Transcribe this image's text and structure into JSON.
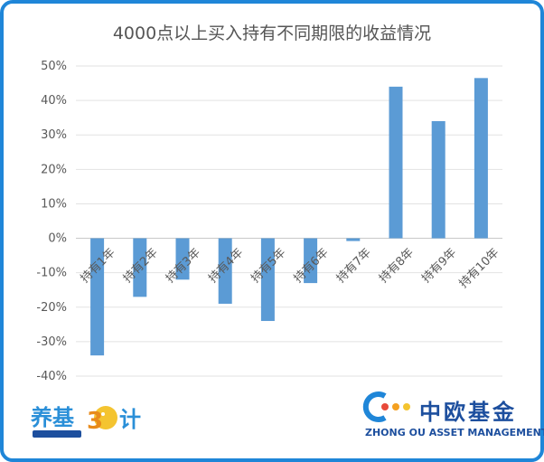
{
  "chart_data": {
    "type": "bar",
    "title": "4000点以上买入持有不同期限的收益情况",
    "categories": [
      "持有1年",
      "持有2年",
      "持有3年",
      "持有4年",
      "持有5年",
      "持有6年",
      "持有7年",
      "持有8年",
      "持有9年",
      "持有10年"
    ],
    "values": [
      -34,
      -17,
      -12,
      -19,
      -24,
      -13,
      -0.8,
      44,
      34,
      46.5
    ],
    "ylim": [
      -40,
      50
    ],
    "yticks": [
      -40,
      -30,
      -20,
      -10,
      0,
      10,
      20,
      30,
      40,
      50
    ],
    "ytick_labels": [
      "-40%",
      "-30%",
      "-20%",
      "-10%",
      "0%",
      "10%",
      "20%",
      "30%",
      "40%",
      "50%"
    ],
    "grid": true,
    "bar_color": "#5b9bd5"
  },
  "logos": {
    "left_text": "养基30计",
    "right_cn": "中欧基金",
    "right_en": "ZHONG OU ASSET MANAGEMENT"
  }
}
